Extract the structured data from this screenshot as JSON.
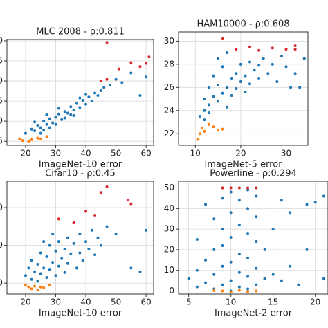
{
  "chart_data": [
    {
      "type": "scatter",
      "title": "MLC 2008 - ρ:0.811",
      "xlabel": "ImageNet-10 error",
      "xlim": [
        13.8,
        62.5
      ],
      "ylim": [
        22.0,
        35.17
      ],
      "xticks": [
        20,
        30,
        40,
        50,
        60
      ],
      "yticks": [
        {
          "value": 35,
          "label": "35.0"
        },
        32.5,
        {
          "value": 30,
          "label": "30.0"
        },
        27.5,
        {
          "value": 25,
          "label": "25.0"
        },
        22.5
      ],
      "grid": true,
      "series": [
        {
          "color": "#1f77b4",
          "x": [
            20,
            22,
            23,
            24,
            25,
            26,
            27,
            28,
            29,
            30,
            31,
            32,
            33,
            34,
            35,
            36,
            37,
            38,
            39,
            40,
            41,
            42,
            43,
            44,
            45,
            46,
            48,
            50,
            52,
            55,
            58,
            60,
            25,
            28,
            30,
            33,
            35,
            38,
            27,
            31,
            36,
            40,
            23,
            26
          ],
          "values": [
            23.5,
            24,
            23.8,
            24.5,
            24.2,
            25,
            24.6,
            25.3,
            24.8,
            25.5,
            25.9,
            25.2,
            26.2,
            26,
            26.8,
            26.4,
            27.2,
            26.7,
            27.6,
            27.1,
            28,
            27.5,
            28.5,
            28.2,
            28.8,
            29.2,
            29.5,
            30.2,
            29.8,
            31,
            28.2,
            30.5,
            23.5,
            24.2,
            24.6,
            25.4,
            25.8,
            27.9,
            25.8,
            26.6,
            25.7,
            28.3,
            24.9,
            23.9
          ]
        },
        {
          "color": "#ff7f0e",
          "x": [
            19,
            21,
            22,
            24,
            25,
            27,
            18
          ],
          "values": [
            22.6,
            22.5,
            22.7,
            22.9,
            22.8,
            23.1,
            22.8
          ]
        },
        {
          "color": "#d62728",
          "x": [
            47,
            45,
            47,
            51,
            55,
            58,
            60,
            61
          ],
          "values": [
            34.8,
            30,
            30.2,
            31.5,
            32.3,
            31.8,
            32.2,
            33
          ]
        }
      ]
    },
    {
      "type": "scatter",
      "title": "HAM10000 - ρ:0.608",
      "xlabel": "ImageNet-5 error",
      "xlim": [
        6.3,
        34.8
      ],
      "ylim": [
        21.0,
        30.8
      ],
      "xticks": [
        10,
        20,
        30
      ],
      "yticks": [
        22,
        24,
        26,
        28,
        30
      ],
      "grid": true,
      "series": [
        {
          "color": "#1f77b4",
          "x": [
            11,
            12,
            12,
            13,
            13,
            14,
            14,
            15,
            15,
            16,
            16,
            17,
            17,
            18,
            18,
            19,
            19,
            20,
            20,
            21,
            21,
            22,
            22,
            23,
            24,
            24,
            25,
            26,
            27,
            28,
            29,
            30,
            31,
            32,
            33,
            34,
            12,
            13,
            15,
            17
          ],
          "values": [
            23.5,
            24,
            25,
            24.5,
            26,
            25.2,
            27,
            24.8,
            26.2,
            25.5,
            27.8,
            26,
            24.3,
            26.8,
            25.3,
            27.2,
            25.9,
            26.5,
            28,
            27,
            25.6,
            28.2,
            26.3,
            27.5,
            27.9,
            26.8,
            28.5,
            27.2,
            28,
            26.5,
            28.7,
            27.8,
            26,
            27.2,
            26,
            28.5,
            23.2,
            23.8,
            28.5,
            29
          ]
        },
        {
          "color": "#ff7f0e",
          "x": [
            10.5,
            11,
            11.5,
            12,
            13,
            14,
            15,
            16
          ],
          "values": [
            21.5,
            22,
            22.5,
            22.2,
            22.8,
            22.6,
            22.3,
            22.4
          ]
        },
        {
          "color": "#d62728",
          "x": [
            16,
            19,
            22,
            24,
            27,
            30,
            32,
            32
          ],
          "values": [
            30.2,
            29.3,
            29.5,
            29.2,
            29.4,
            29.3,
            29.6,
            29.3
          ]
        }
      ]
    },
    {
      "type": "scatter",
      "title": "Cifar10 - ρ:0.45",
      "xlabel": "ImageNet-10 error",
      "xlim": [
        13.8,
        62.5
      ],
      "ylim": [
        7.1,
        36.97
      ],
      "xticks": [
        20,
        30,
        40,
        50,
        60
      ],
      "yticks": [
        30,
        20,
        10
      ],
      "grid": true,
      "series": [
        {
          "color": "#1f77b4",
          "x": [
            20,
            21,
            22,
            22,
            23,
            24,
            24,
            25,
            25,
            26,
            27,
            27,
            28,
            28,
            29,
            30,
            30,
            31,
            31,
            32,
            33,
            33,
            34,
            34,
            35,
            36,
            37,
            38,
            38,
            39,
            40,
            41,
            42,
            43,
            44,
            45,
            47,
            50,
            55,
            58,
            60,
            26,
            29
          ],
          "values": [
            12,
            14,
            11,
            16,
            13,
            15,
            10.5,
            18,
            12.5,
            14,
            17,
            11.5,
            20,
            13.5,
            15.5,
            18.5,
            12,
            21,
            14.5,
            16.5,
            19,
            12.8,
            22,
            15.2,
            17.8,
            20.5,
            14,
            23,
            18,
            16,
            21,
            19,
            24,
            17.5,
            22,
            20,
            25,
            23,
            14,
            13,
            24,
            21,
            23
          ]
        },
        {
          "color": "#ff7f0e",
          "x": [
            20,
            21,
            22,
            23,
            24,
            25,
            26,
            28
          ],
          "values": [
            9.5,
            9,
            8.5,
            9.2,
            8.2,
            9,
            8.8,
            9.5
          ]
        },
        {
          "color": "#d62728",
          "x": [
            31,
            36,
            40,
            43,
            45,
            47,
            54,
            55
          ],
          "values": [
            27,
            26,
            29,
            28,
            34,
            35.5,
            32,
            31
          ]
        }
      ]
    },
    {
      "type": "scatter",
      "title": "Powerline - ρ:0.294",
      "xlabel": "ImageNet-2 error",
      "xlim": [
        3.8,
        21.5
      ],
      "ylim": [
        -1.5,
        53.2
      ],
      "xticks": [
        5,
        10,
        15,
        20
      ],
      "yticks": [
        0,
        10,
        20,
        30,
        40,
        50
      ],
      "grid": true,
      "series": [
        {
          "color": "#1f77b4",
          "x": [
            5,
            6,
            6,
            6,
            7,
            7,
            7,
            8,
            8,
            8,
            8,
            9,
            9,
            9,
            9,
            9,
            10,
            10,
            10,
            10,
            10,
            10,
            11,
            11,
            11,
            11,
            11,
            12,
            12,
            12,
            12,
            12,
            12,
            13,
            13,
            13,
            13,
            13,
            14,
            14,
            15,
            15,
            16,
            17,
            17,
            18,
            19,
            20,
            21,
            21,
            16,
            19
          ],
          "values": [
            6,
            2,
            10,
            25,
            4,
            15,
            42,
            1,
            8,
            20,
            35,
            3,
            12,
            22,
            30,
            45,
            0,
            5,
            14,
            26,
            38,
            48,
            2,
            9,
            18,
            32,
            44,
            1,
            7,
            16,
            28,
            40,
            49,
            3,
            11,
            24,
            36,
            46,
            6,
            20,
            8,
            30,
            5,
            12,
            38,
            3,
            20,
            43,
            6,
            46,
            44,
            42
          ]
        },
        {
          "color": "#ff7f0e",
          "x": [
            9,
            10,
            11,
            12,
            13,
            8
          ],
          "values": [
            0,
            -0.5,
            0.3,
            -0.3,
            0,
            0.2
          ]
        },
        {
          "color": "#d62728",
          "x": [
            9,
            10,
            11,
            12,
            13
          ],
          "values": [
            50,
            50,
            50,
            50,
            50
          ]
        }
      ]
    }
  ]
}
